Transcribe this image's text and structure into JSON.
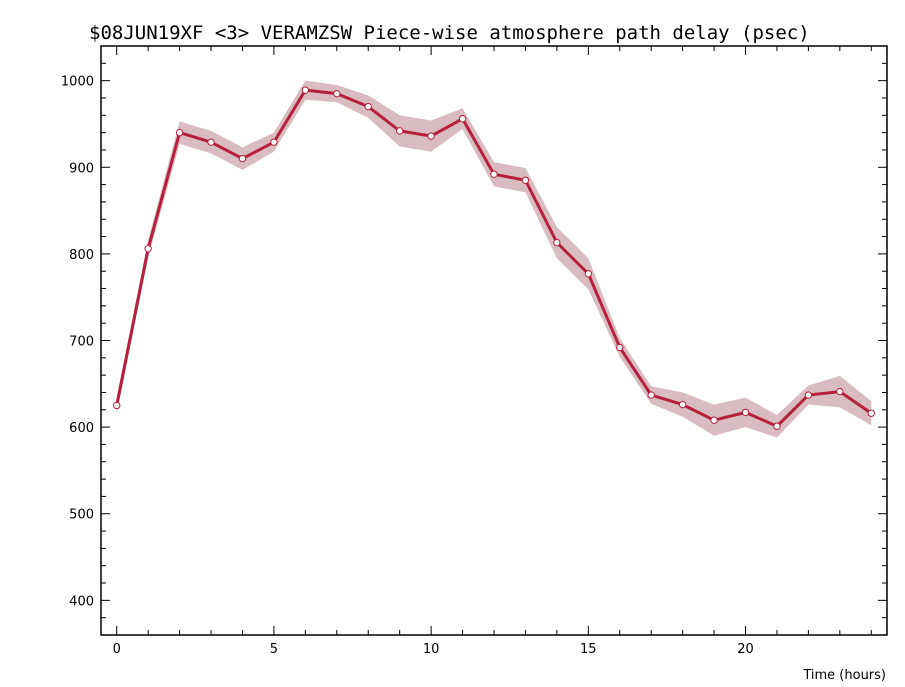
{
  "chart_data": {
    "type": "line",
    "title": "$08JUN19XF <3>  VERAMZSW  Piece-wise atmosphere path delay (psec)",
    "xlabel": "Time (hours)",
    "ylabel": "",
    "xlim": [
      -0.5,
      24.5
    ],
    "ylim": [
      360,
      1040
    ],
    "xticks": [
      0,
      5,
      10,
      15,
      20
    ],
    "yticks": [
      400,
      500,
      600,
      700,
      800,
      900,
      1000
    ],
    "grid": false,
    "colors": {
      "line": "#b5203c",
      "band": "#d9bcc1",
      "marker_fill": "#ffffff"
    },
    "series": [
      {
        "x": [
          0,
          1,
          2,
          3,
          4,
          5,
          6,
          7,
          8,
          9,
          10,
          11,
          12,
          13,
          14,
          15,
          16,
          17,
          18,
          19,
          20,
          21,
          22,
          23,
          24
        ],
        "values": [
          625,
          806,
          940,
          929,
          910,
          929,
          989,
          985,
          970,
          942,
          936,
          956,
          892,
          885,
          813,
          777,
          692,
          637,
          626,
          608,
          617,
          601,
          637,
          641,
          616
        ],
        "errors": [
          10,
          10,
          13,
          13,
          13,
          11,
          11,
          10,
          13,
          18,
          18,
          12,
          14,
          14,
          18,
          18,
          11,
          10,
          14,
          18,
          17,
          13,
          11,
          18,
          14
        ]
      }
    ]
  }
}
